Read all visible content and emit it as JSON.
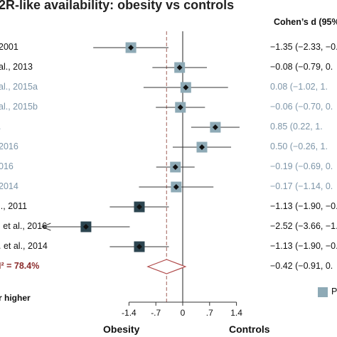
{
  "chart_data": {
    "type": "forest",
    "title": "2R-like availability: obesity vs controls",
    "ci_header": "Cohen’s d (95%",
    "xlabel_left": "Obesity",
    "xlabel_right": "Controls",
    "x_ticks": [
      {
        "value": -1.4,
        "label": "-1.4"
      },
      {
        "value": -0.7,
        "label": "-.7"
      },
      {
        "value": 0,
        "label": "0"
      },
      {
        "value": 0.7,
        "label": ".7"
      },
      {
        "value": 1.4,
        "label": "1.4"
      }
    ],
    "reference_line": -0.42,
    "studies": [
      {
        "label": "2001",
        "d": -1.35,
        "lo": -2.33,
        "hi": -0.37,
        "ci_text": "−1.35 (−2.33, −0.",
        "color": "#8eaab6",
        "style": "dark"
      },
      {
        "label": "al., 2013",
        "d": -0.08,
        "lo": -0.79,
        "hi": 0.63,
        "ci_text": "−0.08 (−0.79, 0.",
        "color": "#8eaab6",
        "style": "dark"
      },
      {
        "label": "al., 2015a",
        "d": 0.08,
        "lo": -1.02,
        "hi": 1.18,
        "ci_text": "0.08 (−1.02, 1.",
        "color": "#8eaab6",
        "style": "grey"
      },
      {
        "label": "al., 2015b",
        "d": -0.06,
        "lo": -0.7,
        "hi": 0.58,
        "ci_text": "−0.06 (−0.70, 0.",
        "color": "#8eaab6",
        "style": "grey"
      },
      {
        "label": ".",
        "d": 0.85,
        "lo": 0.22,
        "hi": 1.48,
        "ci_text": "0.85 (0.22, 1.",
        "color": "#8eaab6",
        "style": "grey"
      },
      {
        "label": "2016",
        "d": 0.5,
        "lo": -0.26,
        "hi": 1.26,
        "ci_text": "0.50 (−0.26, 1.",
        "color": "#8eaab6",
        "style": "grey"
      },
      {
        "label": "016",
        "d": -0.19,
        "lo": -0.69,
        "hi": 0.31,
        "ci_text": "−0.19 (−0.69, 0.",
        "color": "#8eaab6",
        "style": "grey"
      },
      {
        "label": "2014",
        "d": -0.17,
        "lo": -1.14,
        "hi": 0.8,
        "ci_text": "−0.17 (−1.14, 0.",
        "color": "#8eaab6",
        "style": "grey"
      },
      {
        "label": "l., 2011",
        "d": -1.13,
        "lo": -1.9,
        "hi": -0.36,
        "ci_text": "−1.13 (−1.90, −0.",
        "color": "#2c4550",
        "style": "dark"
      },
      {
        "label": "l et al., 2016",
        "d": -2.52,
        "lo": -3.66,
        "hi": -1.38,
        "ci_text": "−2.52 (−3.66, −1.",
        "color": "#2c4550",
        "style": "dark",
        "arrow_left": true
      },
      {
        "label": ". et al., 2014",
        "d": -1.13,
        "lo": -1.9,
        "hi": -0.36,
        "ci_text": "−1.13 (−1.90, −0.",
        "color": "#2c4550",
        "style": "dark"
      }
    ],
    "pooled": {
      "label": "I² = 78.4%",
      "d": -0.42,
      "lo": -0.91,
      "hi": 0.07,
      "ci_text": "−0.42 (−0.91, 0."
    },
    "note": "r higher",
    "legend": {
      "label": "P",
      "color": "#8eaab6"
    }
  }
}
